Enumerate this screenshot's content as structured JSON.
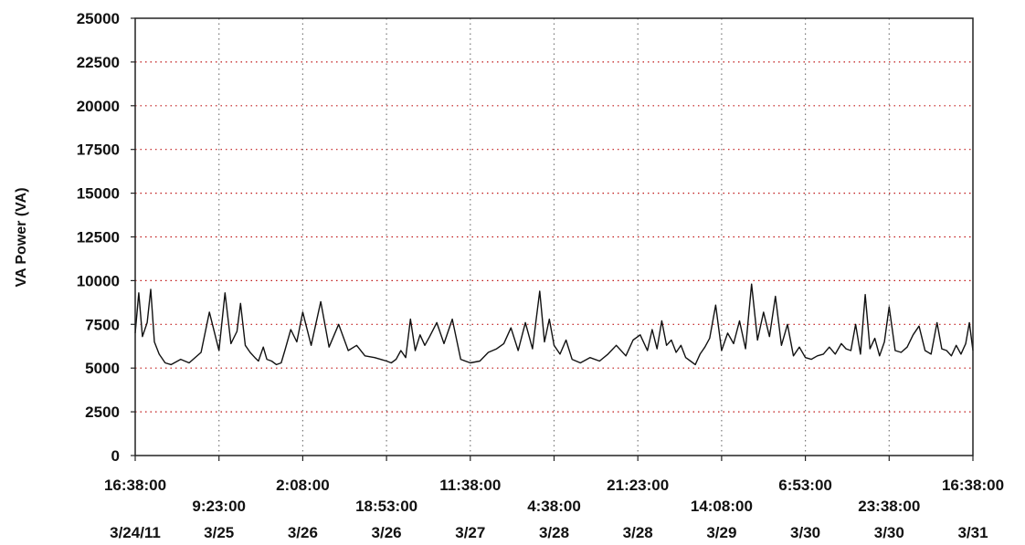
{
  "chart_data": {
    "type": "line",
    "ylabel": "VA Power (VA)",
    "ylim": [
      0,
      25000
    ],
    "yticks": [
      0,
      2500,
      5000,
      7500,
      10000,
      12500,
      15000,
      17500,
      20000,
      22500,
      25000
    ],
    "grid": true,
    "x_ticks": [
      {
        "time": "16:38:00",
        "date": "3/24/11",
        "row": 1
      },
      {
        "time": "9:23:00",
        "date": "3/25",
        "row": 2
      },
      {
        "time": "2:08:00",
        "date": "3/26",
        "row": 1
      },
      {
        "time": "18:53:00",
        "date": "3/26",
        "row": 2
      },
      {
        "time": "11:38:00",
        "date": "3/27",
        "row": 1
      },
      {
        "time": "4:38:00",
        "date": "3/28",
        "row": 2
      },
      {
        "time": "21:23:00",
        "date": "3/28",
        "row": 1
      },
      {
        "time": "14:08:00",
        "date": "3/29",
        "row": 2
      },
      {
        "time": "6:53:00",
        "date": "3/30",
        "row": 1
      },
      {
        "time": "23:38:00",
        "date": "3/30",
        "row": 2
      },
      {
        "time": "16:38:00",
        "date": "3/31",
        "row": 1
      }
    ],
    "x_range": [
      "3/24/11 16:38:00",
      "3/31 16:38:00"
    ],
    "series": [
      {
        "x_days": [
          0.0,
          0.03,
          0.06,
          0.1,
          0.13,
          0.16,
          0.2,
          0.25,
          0.3,
          0.38,
          0.45,
          0.55,
          0.62,
          0.7,
          0.75,
          0.8,
          0.85,
          0.88,
          0.92,
          0.96,
          1.0,
          1.03,
          1.07,
          1.1,
          1.14,
          1.18,
          1.22,
          1.25,
          1.3,
          1.35,
          1.4,
          1.47,
          1.55,
          1.62,
          1.7,
          1.78,
          1.85,
          1.92,
          2.0,
          2.05,
          2.1,
          2.14,
          2.18,
          2.22,
          2.26,
          2.3,
          2.34,
          2.38,
          2.42,
          2.46,
          2.52,
          2.58,
          2.65,
          2.72,
          2.8,
          2.88,
          2.95,
          3.02,
          3.08,
          3.14,
          3.2,
          3.26,
          3.32,
          3.38,
          3.42,
          3.46,
          3.5,
          3.55,
          3.6,
          3.65,
          3.72,
          3.8,
          3.88,
          3.95,
          4.02,
          4.1,
          4.16,
          4.22,
          4.28,
          4.32,
          4.36,
          4.4,
          4.44,
          4.48,
          4.52,
          4.56,
          4.6,
          4.64,
          4.68,
          4.72,
          4.76,
          4.8,
          4.85,
          4.9,
          4.95,
          5.0,
          5.05,
          5.1,
          5.15,
          5.2,
          5.25,
          5.3,
          5.35,
          5.4,
          5.45,
          5.5,
          5.55,
          5.6,
          5.65,
          5.7,
          5.75,
          5.8,
          5.85,
          5.9,
          5.94,
          5.98,
          6.02,
          6.06,
          6.1,
          6.14,
          6.18,
          6.22,
          6.26,
          6.3,
          6.35,
          6.4,
          6.45,
          6.5,
          6.55,
          6.6,
          6.65,
          6.7,
          6.74,
          6.78,
          6.82,
          6.86,
          6.9,
          6.94,
          6.97,
          7.0
        ],
        "values": [
          7000,
          9300,
          6800,
          7600,
          9500,
          6500,
          5800,
          5300,
          5200,
          5500,
          5300,
          5900,
          8200,
          6000,
          9300,
          6400,
          7100,
          8700,
          6300,
          5900,
          5600,
          5400,
          6200,
          5500,
          5400,
          5200,
          5300,
          6000,
          7200,
          6500,
          8200,
          6300,
          8800,
          6200,
          7500,
          6000,
          6300,
          5700,
          5600,
          5500,
          5400,
          5300,
          5500,
          6000,
          5600,
          7800,
          6000,
          6900,
          6300,
          6800,
          7600,
          6400,
          7800,
          5500,
          5300,
          5400,
          5900,
          6100,
          6400,
          7300,
          6000,
          7600,
          6100,
          9400,
          6500,
          7800,
          6300,
          5800,
          6600,
          5500,
          5300,
          5600,
          5400,
          5800,
          6300,
          5700,
          6600,
          6900,
          6000,
          7200,
          6100,
          7700,
          6300,
          6600,
          5900,
          6300,
          5600,
          5400,
          5200,
          5800,
          6200,
          6700,
          8600,
          6000,
          7000,
          6400,
          7700,
          6100,
          9800,
          6600,
          8200,
          6800,
          9100,
          6300,
          7500,
          5700,
          6200,
          5600,
          5500,
          5700,
          5800,
          6200,
          5800,
          6400,
          6100,
          6000,
          7500,
          5800,
          9200,
          6100,
          6700,
          5700,
          6500,
          8500,
          6000,
          5900,
          6200,
          6900,
          7400,
          6000,
          5800,
          7600,
          6100,
          6000,
          5700,
          6300,
          5800,
          6400,
          7600,
          6000
        ],
        "color": "#111111"
      }
    ]
  }
}
